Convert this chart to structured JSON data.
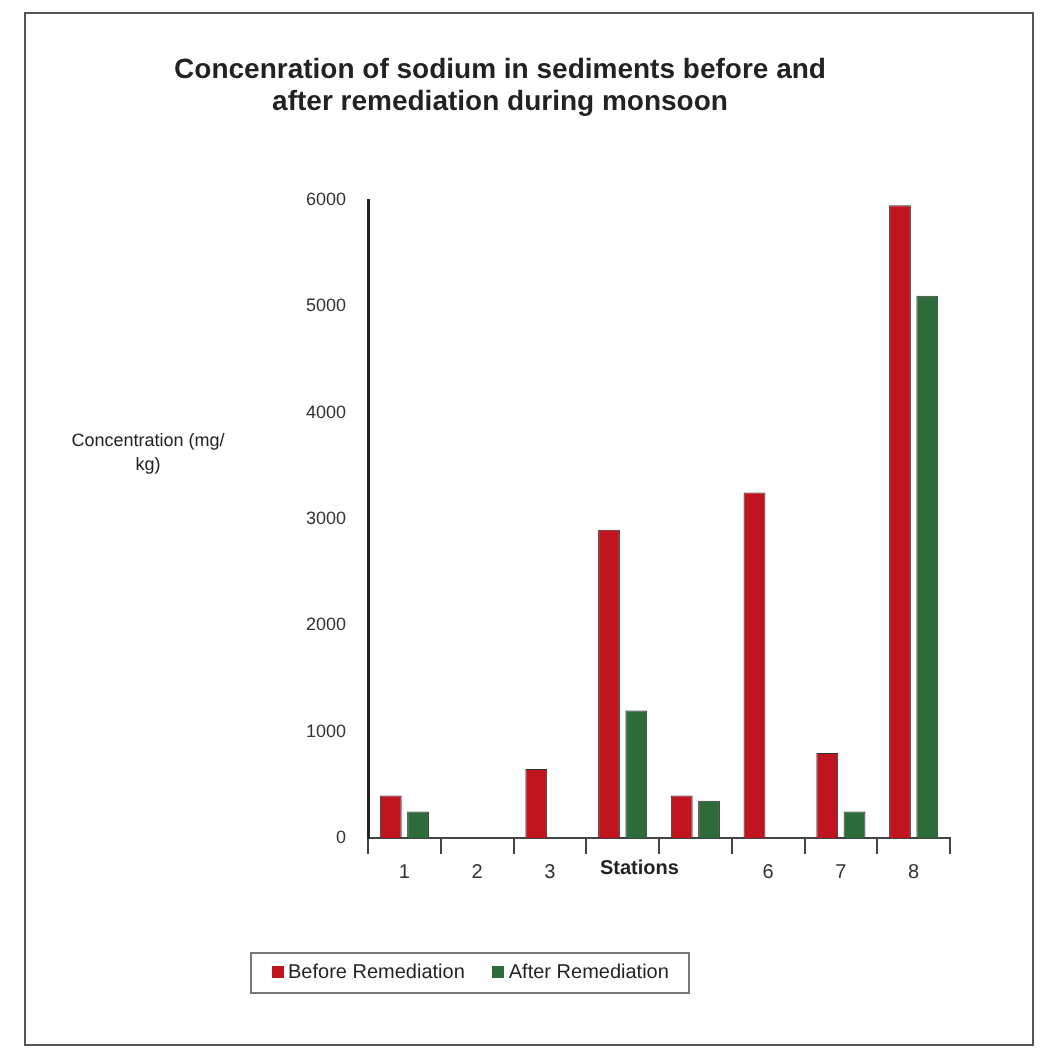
{
  "chart_data": {
    "type": "bar",
    "title": "Concenration of sodium in sediments before and after remediation during monsoon",
    "xlabel": "Stations",
    "ylabel": "Concentration (mg/kg)",
    "categories": [
      "1",
      "2",
      "3",
      null,
      null,
      "6",
      "7",
      "8"
    ],
    "series": [
      {
        "name": "Before Remediation",
        "color": "#c0141e",
        "values": [
          400,
          null,
          650,
          2900,
          400,
          3250,
          800,
          5950
        ]
      },
      {
        "name": "After Remediation",
        "color": "#2e6b3a",
        "values": [
          250,
          null,
          null,
          1200,
          350,
          null,
          250,
          5100
        ]
      }
    ],
    "ylim": [
      0,
      6000
    ],
    "yticks": [
      0,
      1000,
      2000,
      3000,
      4000,
      5000,
      6000
    ],
    "legend": "bottom"
  }
}
